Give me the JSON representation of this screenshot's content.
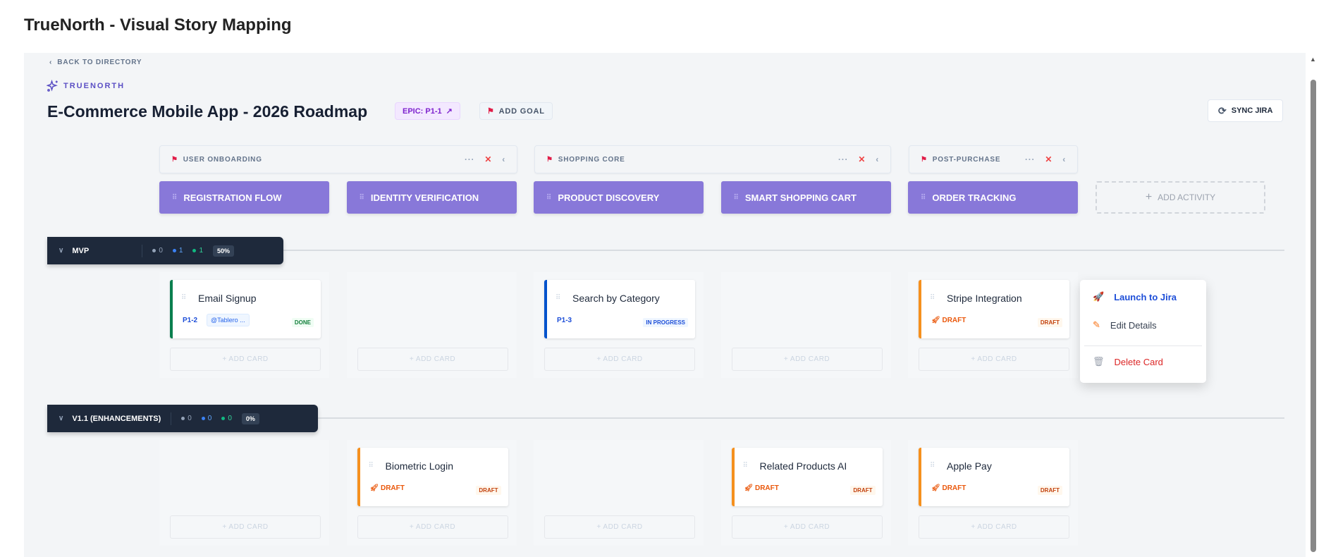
{
  "app_title": "TrueNorth - Visual Story Mapping",
  "nav": {
    "back": "BACK TO DIRECTORY",
    "brand": "TRUENORTH"
  },
  "header": {
    "title": "E-Commerce Mobile App - 2026 Roadmap",
    "epic": "EPIC: P1-1",
    "add_goal": "ADD GOAL",
    "sync": "SYNC JIRA"
  },
  "goals": [
    {
      "label": "USER ONBOARDING"
    },
    {
      "label": "SHOPPING CORE"
    },
    {
      "label": "POST-PURCHASE"
    }
  ],
  "goal_controls": {
    "more": "···",
    "remove": "✕",
    "collapse": "‹"
  },
  "activities": [
    {
      "label": "REGISTRATION FLOW"
    },
    {
      "label": "IDENTITY VERIFICATION"
    },
    {
      "label": "PRODUCT DISCOVERY"
    },
    {
      "label": "SMART SHOPPING CART"
    },
    {
      "label": "ORDER TRACKING"
    }
  ],
  "add_activity": "ADD ACTIVITY",
  "add_card": "+ ADD CARD",
  "status_colors": {
    "done": "#0a7f4f",
    "in_progress": "#0052cc",
    "draft": "#f5901e",
    "todo": "#94a3b8"
  },
  "releases": [
    {
      "name": "MVP",
      "todo": "0",
      "in_progress": "1",
      "done": "1",
      "progress": "50%",
      "cards": [
        {
          "col": 0,
          "title": "Email Signup",
          "key": "P1-2",
          "tag": "@Tablero ...",
          "status": "DONE",
          "kind": "done"
        },
        {
          "col": 2,
          "title": "Search by Category",
          "key": "P1-3",
          "status": "IN PROGRESS",
          "kind": "in_progress"
        },
        {
          "col": 4,
          "title": "Stripe Integration",
          "draft": "DRAFT",
          "status": "DRAFT",
          "kind": "draft"
        }
      ]
    },
    {
      "name": "V1.1 (ENHANCEMENTS)",
      "todo": "0",
      "in_progress": "0",
      "done": "0",
      "progress": "0%",
      "cards": [
        {
          "col": 1,
          "title": "Biometric Login",
          "draft": "DRAFT",
          "status": "DRAFT",
          "kind": "draft"
        },
        {
          "col": 3,
          "title": "Related Products AI",
          "draft": "DRAFT",
          "status": "DRAFT",
          "kind": "draft"
        },
        {
          "col": 4,
          "title": "Apple Pay",
          "draft": "DRAFT",
          "status": "DRAFT",
          "kind": "draft"
        }
      ]
    }
  ],
  "context_menu": {
    "launch": "Launch to Jira",
    "edit": "Edit Details",
    "delete": "Delete Card"
  }
}
